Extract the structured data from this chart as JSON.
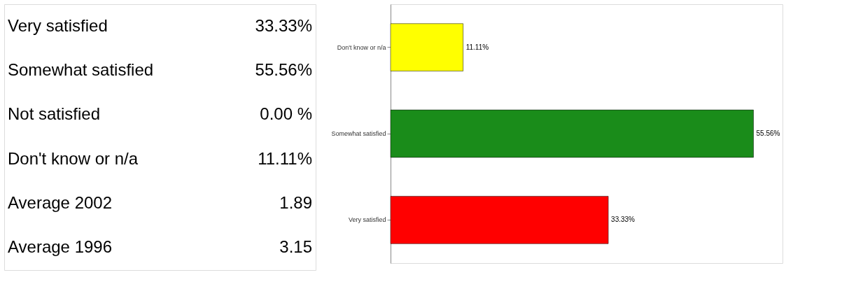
{
  "chart_data": {
    "type": "bar",
    "orientation": "horizontal",
    "categories": [
      "Don't know or n/a",
      "Somewhat satisfied",
      "Very satisfied"
    ],
    "values": [
      11.11,
      55.56,
      33.33
    ],
    "colors": [
      "#ffff00",
      "#1a8c1a",
      "#ff0000"
    ],
    "value_labels": [
      "11.11%",
      "55.56%",
      "33.33%"
    ],
    "annotations": [
      "Very satisfied",
      "33.33%",
      "Somewhat satisfied",
      "55.56%",
      "Not satisfied",
      "0.00 %",
      "Don't know or n/a",
      "11.11%",
      "Average 2002",
      "1.89",
      "Average 1996",
      "3.15"
    ]
  }
}
